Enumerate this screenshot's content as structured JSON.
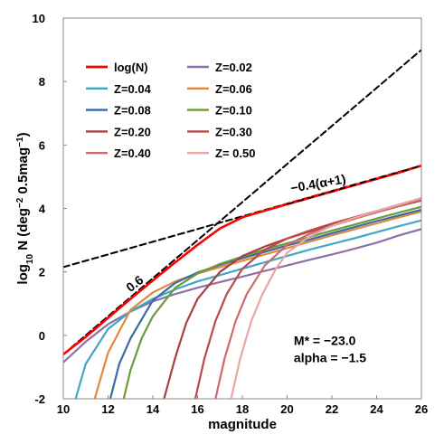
{
  "chart_data": {
    "type": "line",
    "xlabel": "magnitude",
    "ylabel": "log10 N (deg−2 0.5mag−1)",
    "xlim": [
      10,
      26
    ],
    "ylim": [
      -2,
      10
    ],
    "xticks": [
      10,
      12,
      14,
      16,
      18,
      20,
      22,
      24,
      26
    ],
    "yticks": [
      -2,
      0,
      2,
      4,
      6,
      8,
      10
    ],
    "xtick_labels": [
      "10",
      "12",
      "14",
      "16",
      "18",
      "20",
      "22",
      "24",
      "26"
    ],
    "ytick_labels": [
      "-2",
      "0",
      "2",
      "4",
      "6",
      "8",
      "10"
    ],
    "grid": false,
    "legend_position": "top-left",
    "series": [
      {
        "name": "log(N)",
        "color": "#ff0000",
        "style": "solid",
        "x": [
          10,
          11,
          12,
          13,
          14,
          15,
          16,
          17,
          18,
          19,
          20,
          21,
          22,
          23,
          24,
          25,
          26
        ],
        "y": [
          -0.6,
          -0.05,
          0.55,
          1.15,
          1.73,
          2.3,
          2.85,
          3.37,
          3.72,
          3.93,
          4.13,
          4.33,
          4.53,
          4.73,
          4.93,
          5.13,
          5.35
        ]
      },
      {
        "name": "Z=0.02",
        "color": "#8e6fa8",
        "style": "solid",
        "x": [
          10,
          11,
          12,
          13,
          14,
          15,
          16,
          17,
          18,
          19,
          20,
          21,
          22,
          23,
          24,
          25,
          26
        ],
        "y": [
          -0.85,
          -0.2,
          0.35,
          0.75,
          1.07,
          1.3,
          1.5,
          1.68,
          1.85,
          2.03,
          2.2,
          2.38,
          2.55,
          2.73,
          2.92,
          3.15,
          3.35
        ]
      },
      {
        "name": "Z=0.04",
        "color": "#3fa7c4",
        "style": "solid",
        "x": [
          10.55,
          11,
          12,
          13,
          14,
          15,
          16,
          17,
          18,
          19,
          20,
          21,
          22,
          23,
          24,
          25,
          26
        ],
        "y": [
          -2,
          -0.9,
          0.2,
          0.75,
          1.15,
          1.45,
          1.7,
          1.9,
          2.1,
          2.3,
          2.5,
          2.7,
          2.88,
          3.06,
          3.25,
          3.44,
          3.62
        ]
      },
      {
        "name": "Z=0.06",
        "color": "#e08a3e",
        "style": "solid",
        "x": [
          11.4,
          12,
          13,
          14,
          15,
          16,
          17,
          18,
          19,
          20,
          21,
          22,
          23,
          24,
          25,
          26
        ],
        "y": [
          -2,
          -0.55,
          0.8,
          1.35,
          1.7,
          1.95,
          2.15,
          2.35,
          2.55,
          2.75,
          2.95,
          3.15,
          3.34,
          3.53,
          3.72,
          3.9
        ]
      },
      {
        "name": "Z=0.08",
        "color": "#3a6aa6",
        "style": "solid",
        "x": [
          12.1,
          12.5,
          13,
          14,
          15,
          16,
          17,
          18,
          19,
          20,
          21,
          22,
          23,
          24,
          25,
          26
        ],
        "y": [
          -2,
          -0.9,
          -0.1,
          1.1,
          1.65,
          1.98,
          2.22,
          2.43,
          2.63,
          2.83,
          3.02,
          3.22,
          3.41,
          3.6,
          3.78,
          3.96
        ]
      },
      {
        "name": "Z=0.10",
        "color": "#6d9a3a",
        "style": "solid",
        "x": [
          12.7,
          13,
          13.5,
          14,
          15,
          16,
          17,
          18,
          19,
          20,
          21,
          22,
          23,
          24,
          25,
          26
        ],
        "y": [
          -2,
          -1.1,
          -0.1,
          0.6,
          1.5,
          1.95,
          2.25,
          2.48,
          2.7,
          2.9,
          3.1,
          3.3,
          3.49,
          3.68,
          3.87,
          4.05
        ]
      },
      {
        "name": "Z=0.20",
        "color": "#a84040",
        "style": "solid",
        "x": [
          14.5,
          15,
          15.5,
          16,
          17,
          18,
          19,
          20,
          21,
          22,
          23,
          24,
          25,
          26
        ],
        "y": [
          -2,
          -0.7,
          0.4,
          1.15,
          2.0,
          2.5,
          2.8,
          3.05,
          3.27,
          3.48,
          3.68,
          3.88,
          4.07,
          4.25
        ]
      },
      {
        "name": "Z=0.30",
        "color": "#b94a4a",
        "style": "solid",
        "x": [
          15.9,
          16.3,
          16.8,
          17.3,
          18,
          19,
          20,
          21,
          22,
          23,
          24,
          25,
          26
        ],
        "y": [
          -2,
          -0.75,
          0.45,
          1.3,
          2.1,
          2.7,
          3.05,
          3.3,
          3.52,
          3.72,
          3.92,
          4.12,
          4.32
        ]
      },
      {
        "name": "Z=0.40",
        "color": "#d06a6a",
        "style": "solid",
        "x": [
          16.8,
          17.2,
          17.7,
          18.2,
          19,
          20,
          21,
          22,
          23,
          24,
          25,
          26
        ],
        "y": [
          -2,
          -0.75,
          0.45,
          1.3,
          2.2,
          2.85,
          3.2,
          3.45,
          3.67,
          3.88,
          4.08,
          4.28
        ]
      },
      {
        "name": "Z= 0.50",
        "color": "#e8a7a7",
        "style": "solid",
        "x": [
          17.5,
          17.9,
          18.4,
          18.9,
          19.5,
          20,
          21,
          22,
          23,
          24,
          25,
          26
        ],
        "y": [
          -2,
          -0.75,
          0.45,
          1.3,
          2.1,
          2.6,
          3.12,
          3.45,
          3.7,
          3.92,
          4.12,
          4.33
        ]
      },
      {
        "name": "",
        "color": "#000000",
        "style": "dashed",
        "x": [
          10,
          26
        ],
        "y": [
          -0.6,
          9.0
        ]
      },
      {
        "name": "",
        "color": "#000000",
        "style": "dashed",
        "x": [
          10,
          26
        ],
        "y": [
          2.15,
          5.35
        ]
      }
    ],
    "annotations": [
      {
        "text": "0.6",
        "x": 13.0,
        "y": 1.35,
        "rotation_deg": -38
      },
      {
        "text": "−0.4(α+1)",
        "x": 20.2,
        "y": 4.5,
        "rotation_deg": -10
      },
      {
        "text": "M* = −23.0",
        "x": 20.3,
        "y": -0.3,
        "rotation_deg": 0
      },
      {
        "text": "alpha = −1.5",
        "x": 20.3,
        "y": -0.85,
        "rotation_deg": 0
      }
    ]
  }
}
